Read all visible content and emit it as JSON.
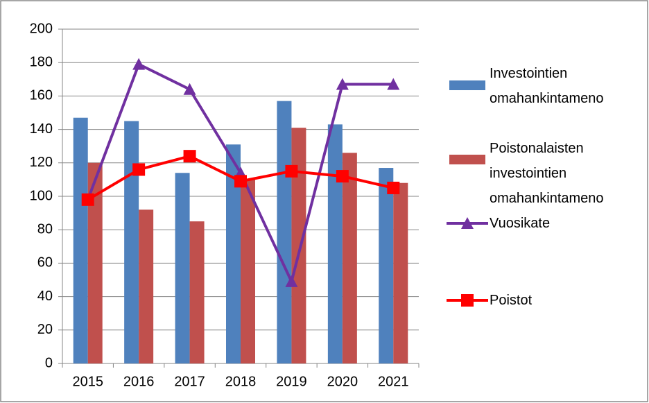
{
  "chart_data": {
    "type": "bar_line",
    "categories": [
      "2015",
      "2016",
      "2017",
      "2018",
      "2019",
      "2020",
      "2021"
    ],
    "series": [
      {
        "name": "Investointien omahankintameno",
        "type": "bar",
        "color": "#4f81bd",
        "values": [
          147,
          145,
          114,
          131,
          157,
          143,
          117
        ]
      },
      {
        "name": "Poistonalaisten investointien omahankintameno",
        "type": "bar",
        "color": "#c0504d",
        "values": [
          120,
          92,
          85,
          110,
          141,
          126,
          108
        ]
      },
      {
        "name": "Vuosikate",
        "type": "line",
        "marker": "triangle",
        "color": "#7030a0",
        "values": [
          98,
          179,
          164,
          114,
          49,
          167,
          167
        ]
      },
      {
        "name": "Poistot",
        "type": "line",
        "marker": "square",
        "color": "#ff0000",
        "values": [
          98,
          116,
          124,
          109,
          115,
          112,
          105
        ]
      }
    ],
    "ylim": [
      0,
      200
    ],
    "yticks": [
      0,
      20,
      40,
      60,
      80,
      100,
      120,
      140,
      160,
      180,
      200
    ],
    "grid": true,
    "legend": "right"
  }
}
